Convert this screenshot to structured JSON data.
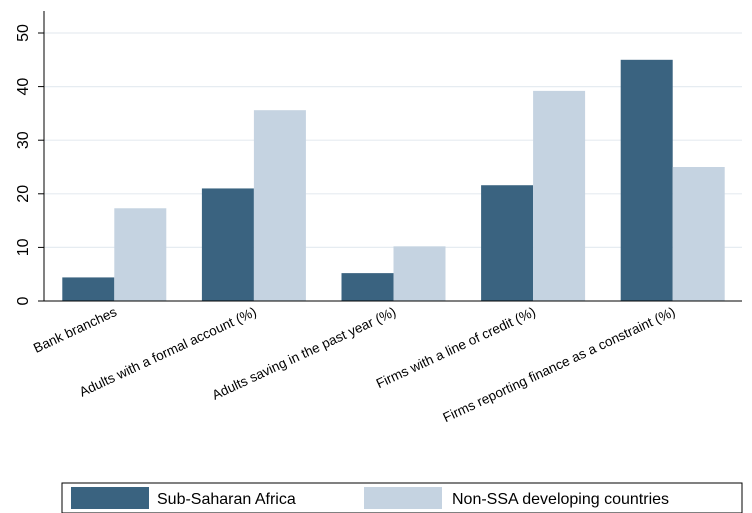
{
  "chart_data": {
    "type": "bar",
    "categories": [
      "Bank branches",
      "Adults with a formal account (%)",
      "Adults saving in the past year (%)",
      "Firms with a line of credit (%)",
      "Firms reporting finance as a constraint (%)"
    ],
    "series": [
      {
        "name": "Sub-Saharan Africa",
        "color": "#3a6380",
        "values": [
          4.4,
          21.0,
          5.2,
          21.6,
          45.0
        ]
      },
      {
        "name": "Non-SSA developing countries",
        "color": "#c5d3e1",
        "values": [
          17.3,
          35.6,
          10.2,
          39.2,
          25.0
        ]
      }
    ],
    "yticks": [
      0,
      10,
      20,
      30,
      40,
      50
    ],
    "ylim": [
      0,
      50
    ],
    "grid": true,
    "legend_position": "bottom"
  }
}
